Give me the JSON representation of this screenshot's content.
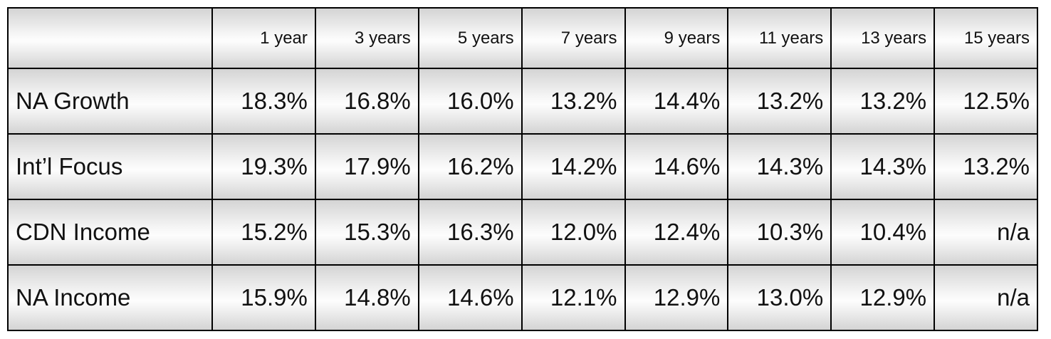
{
  "table": {
    "columns": [
      "1 year",
      "3 years",
      "5 years",
      "7 years",
      "9 years",
      "11 years",
      "13 years",
      "15 years"
    ],
    "rows": [
      [
        "NA Growth",
        "18.3%",
        "16.8%",
        "16.0%",
        "13.2%",
        "14.4%",
        "13.2%",
        "13.2%",
        "12.5%"
      ],
      [
        "Int’l Focus",
        "19.3%",
        "17.9%",
        "16.2%",
        "14.2%",
        "14.6%",
        "14.3%",
        "14.3%",
        "13.2%"
      ],
      [
        "CDN Income",
        "15.2%",
        "15.3%",
        "16.3%",
        "12.0%",
        "12.4%",
        "10.3%",
        "10.4%",
        "n/a"
      ],
      [
        "NA Income",
        "15.9%",
        "14.8%",
        "14.6%",
        "12.1%",
        "12.9%",
        "13.0%",
        "12.9%",
        "n/a"
      ]
    ]
  }
}
